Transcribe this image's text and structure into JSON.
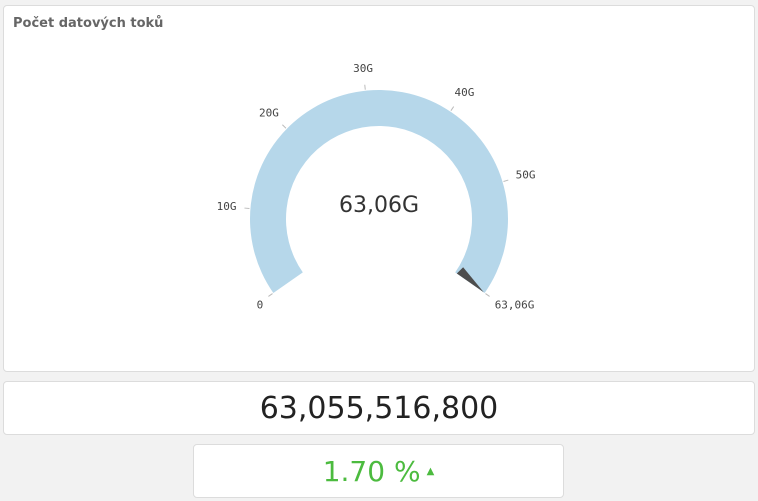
{
  "chart_data": {
    "type": "gauge",
    "title": "Počet datových toků",
    "values": [
      63055516800
    ],
    "value_labels": [
      "63,06G"
    ],
    "color": "#b6d7ea",
    "needle_color": "#4d4d4d",
    "ylim": [
      0,
      63055516800
    ],
    "yticks": [
      0,
      {
        "value": 10000000000,
        "label": "10G"
      },
      {
        "value": 20000000000,
        "label": "20G"
      },
      {
        "value": 30000000000,
        "label": "30G"
      },
      {
        "value": 40000000000,
        "label": "40G"
      },
      {
        "value": 50000000000,
        "label": "50G"
      },
      {
        "value": 63055516800,
        "label": "63,06G"
      }
    ]
  },
  "kpi": {
    "value": "63,055,516,800"
  },
  "change": {
    "value": "1.70 %"
  }
}
